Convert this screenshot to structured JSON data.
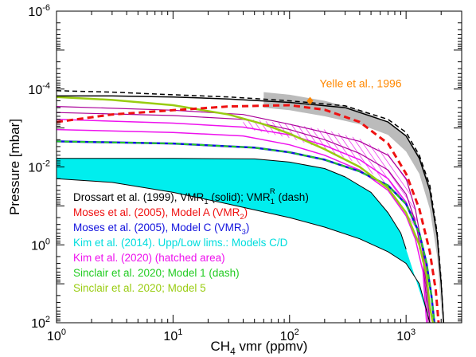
{
  "chart_data": {
    "type": "line",
    "xlabel_parts": [
      "CH",
      "4",
      " vmr (ppmv)"
    ],
    "ylabel": "Pressure [mbar]",
    "x_scale": "log",
    "y_scale": "log",
    "y_inverted": true,
    "xlim": [
      1,
      3000
    ],
    "ylim": [
      100,
      1e-06
    ],
    "x_ticks": [
      {
        "value": 1,
        "base": "10",
        "exp": "0"
      },
      {
        "value": 10,
        "base": "10",
        "exp": "1"
      },
      {
        "value": 100,
        "base": "10",
        "exp": "2"
      },
      {
        "value": 1000,
        "base": "10",
        "exp": "3"
      }
    ],
    "y_ticks": [
      {
        "value": 1e-06,
        "base": "10",
        "exp": "-6"
      },
      {
        "value": 0.0001,
        "base": "10",
        "exp": "-4"
      },
      {
        "value": 0.01,
        "base": "10",
        "exp": "-2"
      },
      {
        "value": 1,
        "base": "10",
        "exp": "0"
      },
      {
        "value": 100,
        "base": "10",
        "exp": "2"
      }
    ],
    "colors": {
      "black": "#000000",
      "red": "#ee1111",
      "blue": "#1111dd",
      "cyan": "#00eeee",
      "magenta": "#ee11ee",
      "green": "#22cc22",
      "olive": "#99cc11",
      "orange": "#ff8800",
      "gray": "#bbbbbb"
    },
    "annotation": {
      "text": "Yelle et al., 1996",
      "x": 150,
      "y": 0.0002,
      "color": "#ff8800"
    },
    "legend": [
      {
        "color": "#000000",
        "parts": [
          [
            "Drossart et al. (1999), VMR",
            ""
          ],
          [
            "1",
            "sub"
          ],
          [
            " (solid); VMR",
            ""
          ],
          [
            "1",
            "sub"
          ],
          [
            "R",
            "sup"
          ],
          [
            " (dash)",
            ""
          ]
        ]
      },
      {
        "color": "#ee1111",
        "parts": [
          [
            "Moses et al. (2005), Model A (VMR",
            ""
          ],
          [
            "2",
            "sub"
          ],
          [
            ")",
            ""
          ]
        ]
      },
      {
        "color": "#1111dd",
        "parts": [
          [
            "Moses et al. (2005), Model C (VMR",
            ""
          ],
          [
            "3",
            "sub"
          ],
          [
            ")",
            ""
          ]
        ]
      },
      {
        "color": "#00dddd",
        "parts": [
          [
            "Kim et al. (2014). Upp/Low lims.: Models C/D",
            ""
          ]
        ]
      },
      {
        "color": "#ee11ee",
        "parts": [
          [
            "Kim et al. (2020) (hatched area)",
            ""
          ]
        ]
      },
      {
        "color": "#22cc22",
        "parts": [
          [
            "Sinclair et al. 2020; Model 1 (dash)",
            ""
          ]
        ]
      },
      {
        "color": "#99cc11",
        "parts": [
          [
            "Sinclair et al. 2020; Model 5",
            ""
          ]
        ]
      }
    ],
    "series": [
      {
        "key": "yelle_band_upper",
        "style": "band",
        "points": [
          [
            60,
            0.00012
          ],
          [
            100,
            0.00014
          ],
          [
            200,
            0.0002
          ],
          [
            400,
            0.00035
          ],
          [
            700,
            0.0007
          ],
          [
            1000,
            0.0016
          ],
          [
            1300,
            0.005
          ],
          [
            1600,
            0.03
          ],
          [
            1850,
            0.5
          ],
          [
            2050,
            100
          ]
        ]
      },
      {
        "key": "yelle_band_lower",
        "style": "band",
        "points": [
          [
            60,
            0.0003
          ],
          [
            100,
            0.00035
          ],
          [
            200,
            0.0005
          ],
          [
            400,
            0.0008
          ],
          [
            700,
            0.0015
          ],
          [
            1000,
            0.004
          ],
          [
            1300,
            0.015
          ],
          [
            1600,
            0.12
          ],
          [
            1850,
            2
          ],
          [
            2050,
            100
          ]
        ]
      },
      {
        "key": "kim2014_upper",
        "style": "fill",
        "points": [
          [
            1,
            0.006
          ],
          [
            10,
            0.006
          ],
          [
            50,
            0.0062
          ],
          [
            100,
            0.0075
          ],
          [
            200,
            0.011
          ],
          [
            300,
            0.018
          ],
          [
            500,
            0.045
          ],
          [
            700,
            0.15
          ],
          [
            900,
            0.5
          ],
          [
            1000,
            1.3
          ]
        ]
      },
      {
        "key": "kim2014_lower",
        "style": "fill",
        "points": [
          [
            1,
            0.02
          ],
          [
            3,
            0.025
          ],
          [
            10,
            0.045
          ],
          [
            30,
            0.09
          ],
          [
            100,
            0.2
          ],
          [
            200,
            0.35
          ],
          [
            400,
            0.7
          ],
          [
            700,
            1.5
          ],
          [
            1000,
            3
          ],
          [
            1300,
            10
          ],
          [
            1600,
            100
          ]
        ]
      },
      {
        "key": "kim2020_upper",
        "style": "hatch",
        "points": [
          [
            40,
            0.00058
          ],
          [
            100,
            0.00078
          ],
          [
            200,
            0.0011
          ],
          [
            400,
            0.0019
          ],
          [
            700,
            0.0045
          ],
          [
            1000,
            0.018
          ],
          [
            1200,
            0.12
          ],
          [
            1400,
            1.5
          ],
          [
            1600,
            100
          ]
        ]
      },
      {
        "key": "kim2020_lower",
        "style": "hatch",
        "points": [
          [
            40,
            0.001
          ],
          [
            100,
            0.0018
          ],
          [
            200,
            0.0035
          ],
          [
            400,
            0.0085
          ],
          [
            700,
            0.03
          ],
          [
            1000,
            0.13
          ],
          [
            1200,
            0.5
          ],
          [
            1400,
            3.5
          ],
          [
            1600,
            100
          ]
        ]
      },
      {
        "key": "magenta_outer_1",
        "color": "#ee11ee",
        "width": 1.5,
        "points": [
          [
            1,
            0.0006
          ],
          [
            10,
            0.00075
          ],
          [
            40,
            0.00095
          ],
          [
            100,
            0.0015
          ],
          [
            200,
            0.0028
          ],
          [
            400,
            0.0065
          ],
          [
            700,
            0.02
          ],
          [
            1000,
            0.08
          ],
          [
            1300,
            0.5
          ],
          [
            1500,
            5
          ],
          [
            1600,
            100
          ]
        ]
      },
      {
        "key": "magenta_outer_2",
        "color": "#ee11ee",
        "width": 1.5,
        "points": [
          [
            1,
            0.0011
          ],
          [
            10,
            0.0013
          ],
          [
            40,
            0.0016
          ],
          [
            100,
            0.0027
          ],
          [
            200,
            0.005
          ],
          [
            400,
            0.012
          ],
          [
            700,
            0.04
          ],
          [
            1000,
            0.18
          ],
          [
            1200,
            0.7
          ],
          [
            1400,
            5
          ],
          [
            1500,
            100
          ]
        ]
      },
      {
        "key": "kim2020_dark_1",
        "color": "#aa0099",
        "width": 1.2,
        "points": [
          [
            1,
            0.00028
          ],
          [
            10,
            0.00035
          ],
          [
            40,
            0.00045
          ],
          [
            100,
            0.0008
          ],
          [
            200,
            0.0013
          ],
          [
            400,
            0.0022
          ],
          [
            700,
            0.005
          ],
          [
            1000,
            0.02
          ],
          [
            1200,
            0.12
          ],
          [
            1400,
            1.5
          ],
          [
            1600,
            100
          ]
        ]
      },
      {
        "key": "kim2020_dark_2",
        "color": "#aa0099",
        "width": 1.2,
        "points": [
          [
            1,
            0.0004
          ],
          [
            10,
            0.00048
          ],
          [
            40,
            0.0006
          ],
          [
            100,
            0.0011
          ],
          [
            200,
            0.002
          ],
          [
            400,
            0.0045
          ],
          [
            700,
            0.012
          ],
          [
            1000,
            0.05
          ],
          [
            1200,
            0.25
          ],
          [
            1400,
            2.5
          ],
          [
            1550,
            100
          ]
        ]
      },
      {
        "key": "kim2014_edge_upper",
        "color": "#000000",
        "width": 1,
        "points": [
          [
            1,
            0.006
          ],
          [
            10,
            0.006
          ],
          [
            50,
            0.0062
          ],
          [
            100,
            0.0075
          ],
          [
            200,
            0.011
          ],
          [
            300,
            0.018
          ],
          [
            500,
            0.045
          ],
          [
            700,
            0.15
          ],
          [
            900,
            0.5
          ],
          [
            1000,
            1.3
          ]
        ]
      },
      {
        "key": "kim2014_edge_lower",
        "color": "#000000",
        "width": 1,
        "points": [
          [
            1,
            0.02
          ],
          [
            3,
            0.025
          ],
          [
            10,
            0.045
          ],
          [
            30,
            0.09
          ],
          [
            100,
            0.2
          ],
          [
            200,
            0.35
          ],
          [
            400,
            0.7
          ],
          [
            700,
            1.5
          ],
          [
            1000,
            3
          ],
          [
            1300,
            10
          ],
          [
            1600,
            100
          ]
        ]
      },
      {
        "key": "moses_model_c",
        "color": "#1111dd",
        "width": 2.5,
        "points": [
          [
            1,
            0.0022
          ],
          [
            10,
            0.0025
          ],
          [
            50,
            0.0032
          ],
          [
            100,
            0.0042
          ],
          [
            200,
            0.0065
          ],
          [
            400,
            0.013
          ],
          [
            700,
            0.03
          ],
          [
            1000,
            0.09
          ],
          [
            1300,
            0.5
          ],
          [
            1500,
            3
          ],
          [
            1650,
            20
          ],
          [
            1750,
            100
          ]
        ]
      },
      {
        "key": "sinclair_model_1",
        "color": "#22cc22",
        "width": 2,
        "dash": "6,4",
        "points": [
          [
            1,
            0.0022
          ],
          [
            10,
            0.0025
          ],
          [
            50,
            0.0032
          ],
          [
            100,
            0.0042
          ],
          [
            200,
            0.0065
          ],
          [
            400,
            0.013
          ],
          [
            700,
            0.03
          ],
          [
            1000,
            0.09
          ],
          [
            1300,
            0.5
          ],
          [
            1500,
            3
          ],
          [
            1650,
            20
          ],
          [
            1750,
            100
          ]
        ]
      },
      {
        "key": "sinclair_model_5",
        "color": "#99cc11",
        "width": 2.5,
        "points": [
          [
            1,
            0.00016
          ],
          [
            3,
            0.00019
          ],
          [
            10,
            0.00026
          ],
          [
            30,
            0.00045
          ],
          [
            60,
            0.0008
          ],
          [
            100,
            0.0014
          ],
          [
            200,
            0.0035
          ],
          [
            400,
            0.01
          ],
          [
            700,
            0.035
          ],
          [
            1000,
            0.15
          ],
          [
            1300,
            1
          ],
          [
            1500,
            6
          ],
          [
            1600,
            40
          ],
          [
            1700,
            100
          ]
        ]
      },
      {
        "key": "moses_model_a",
        "color": "#ee1111",
        "width": 3,
        "dash": "8,5",
        "points": [
          [
            1,
            0.0007
          ],
          [
            3,
            0.00045
          ],
          [
            10,
            0.00035
          ],
          [
            30,
            0.00028
          ],
          [
            100,
            0.00026
          ],
          [
            200,
            0.00034
          ],
          [
            400,
            0.0007
          ],
          [
            700,
            0.0025
          ],
          [
            1000,
            0.015
          ],
          [
            1300,
            0.12
          ],
          [
            1600,
            1.5
          ],
          [
            1800,
            15
          ],
          [
            1900,
            100
          ]
        ]
      },
      {
        "key": "drossart_solid",
        "color": "#000000",
        "width": 1.5,
        "points": [
          [
            1,
            0.00015
          ],
          [
            3,
            0.00015
          ],
          [
            10,
            0.00016
          ],
          [
            30,
            0.00018
          ],
          [
            100,
            0.00022
          ],
          [
            300,
            0.0003
          ],
          [
            700,
            0.0007
          ],
          [
            1000,
            0.0016
          ],
          [
            1300,
            0.006
          ],
          [
            1600,
            0.04
          ],
          [
            1850,
            0.6
          ],
          [
            2000,
            10
          ],
          [
            2100,
            100
          ]
        ]
      },
      {
        "key": "drossart_dash",
        "color": "#000000",
        "width": 1.5,
        "dash": "6,4",
        "points": [
          [
            1,
            0.00011
          ],
          [
            3,
            0.00012
          ],
          [
            10,
            0.00014
          ],
          [
            30,
            0.00016
          ],
          [
            100,
            0.0002
          ],
          [
            300,
            0.00027
          ],
          [
            700,
            0.0006
          ],
          [
            1000,
            0.0013
          ],
          [
            1300,
            0.005
          ],
          [
            1600,
            0.03
          ],
          [
            1850,
            0.5
          ],
          [
            2000,
            8
          ],
          [
            2100,
            100
          ]
        ]
      }
    ]
  }
}
